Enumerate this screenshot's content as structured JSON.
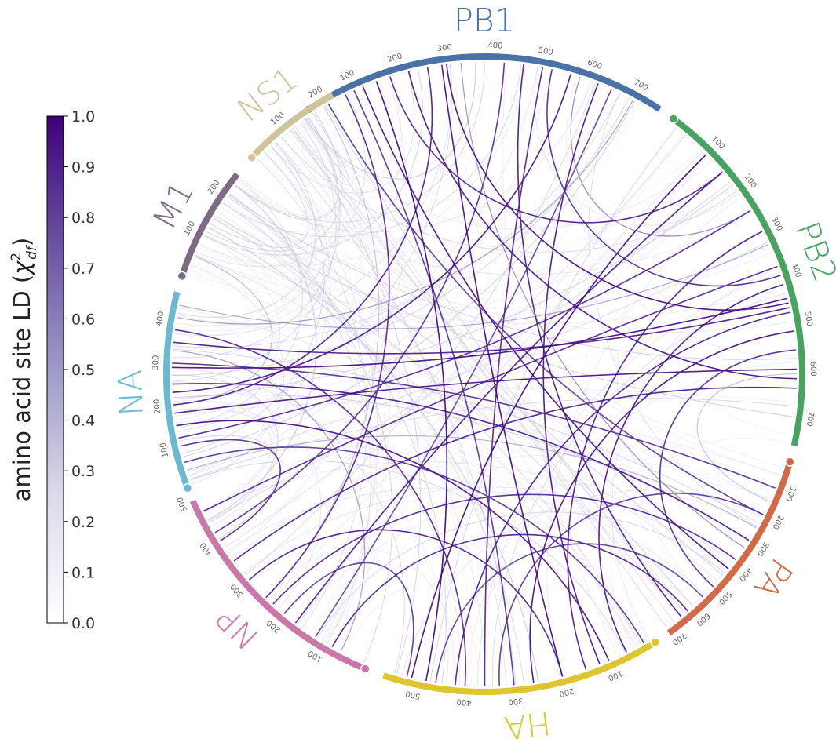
{
  "chart_data": {
    "type": "chord",
    "colorbar": {
      "label": "amino acid site LD (χ²df)",
      "label_main": "amino acid site LD (",
      "label_sym": "χ",
      "label_sup": "2",
      "label_sub": "df",
      "label_end": ")",
      "ticks": [
        "0.0",
        "0.1",
        "0.2",
        "0.3",
        "0.4",
        "0.5",
        "0.6",
        "0.7",
        "0.8",
        "0.9",
        "1.0"
      ],
      "range": [
        0.0,
        1.0
      ],
      "colors": [
        "#ffffff",
        "#dcdaeb",
        "#9e9ac8",
        "#6a51a3",
        "#3f007d"
      ]
    },
    "segments": [
      {
        "name": "PB1",
        "color": "#4a72a6",
        "length": 757,
        "ticks": [
          "100",
          "200",
          "300",
          "400",
          "500",
          "600",
          "700"
        ],
        "start_deg": -33.5,
        "end_deg": 33.5
      },
      {
        "name": "PB2",
        "color": "#48a360",
        "length": 759,
        "ticks": [
          "100",
          "200",
          "300",
          "400",
          "500",
          "600",
          "700"
        ],
        "start_deg": 36.5,
        "end_deg": 103
      },
      {
        "name": "PA",
        "color": "#d16a48",
        "length": 716,
        "ticks": [
          "100",
          "200",
          "300",
          "400",
          "500",
          "600",
          "700"
        ],
        "start_deg": 106,
        "end_deg": 144.5
      },
      {
        "name": "HA",
        "color": "#dfc52f",
        "length": 566,
        "ticks": [
          "100",
          "200",
          "300",
          "400",
          "500"
        ],
        "start_deg": 147.5,
        "end_deg": 198.5
      },
      {
        "name": "NP",
        "color": "#c978a7",
        "length": 498,
        "ticks": [
          "100",
          "200",
          "300",
          "400",
          "500"
        ],
        "start_deg": 202,
        "end_deg": 246.5
      },
      {
        "name": "NA",
        "color": "#6db8d1",
        "length": 469,
        "ticks": [
          "100",
          "200",
          "300",
          "400"
        ],
        "start_deg": 249,
        "end_deg": 285
      },
      {
        "name": "M1",
        "color": "#7d6b84",
        "length": 252,
        "ticks": [
          "100",
          "200"
        ],
        "start_deg": 288,
        "end_deg": 309
      },
      {
        "name": "NS1",
        "color": "#cfc499",
        "length": 230,
        "ticks": [
          "100",
          "200"
        ],
        "start_deg": 313,
        "end_deg": 331.5
      }
    ],
    "links": [
      {
        "a": "PB1",
        "pa": 150,
        "b": "HA",
        "pb": 480,
        "v": 0.98
      },
      {
        "a": "PB1",
        "pa": 120,
        "b": "PA",
        "pb": 420,
        "v": 0.95
      },
      {
        "a": "PB1",
        "pa": 290,
        "b": "HA",
        "pb": 200,
        "v": 0.97
      },
      {
        "a": "PB1",
        "pa": 300,
        "b": "PB2",
        "pb": 460,
        "v": 0.96
      },
      {
        "a": "PB1",
        "pa": 560,
        "b": "NA",
        "pb": 230,
        "v": 0.94
      },
      {
        "a": "PB1",
        "pa": 620,
        "b": "HA",
        "pb": 120,
        "v": 0.93
      },
      {
        "a": "PB1",
        "pa": 80,
        "b": "NP",
        "pb": 250,
        "v": 0.88
      },
      {
        "a": "PB1",
        "pa": 460,
        "b": "PA",
        "pb": 650,
        "v": 0.92
      },
      {
        "a": "PB1",
        "pa": 260,
        "b": "NA",
        "pb": 200,
        "v": 0.9
      },
      {
        "a": "PB1",
        "pa": 180,
        "b": "PB2",
        "pb": 150,
        "v": 0.91
      },
      {
        "a": "PB1",
        "pa": 420,
        "b": "NP",
        "pb": 420,
        "v": 0.86
      },
      {
        "a": "PB1",
        "pa": 700,
        "b": "NA",
        "pb": 410,
        "v": 0.6
      },
      {
        "a": "PB1",
        "pa": 500,
        "b": "HA",
        "pb": 360,
        "v": 0.89
      },
      {
        "a": "PB1",
        "pa": 40,
        "b": "PA",
        "pb": 200,
        "v": 0.82
      },
      {
        "a": "PB1",
        "pa": 220,
        "b": "PB2",
        "pb": 620,
        "v": 0.94
      },
      {
        "a": "PB1",
        "pa": 520,
        "b": "PB2",
        "pb": 400,
        "v": 0.87
      },
      {
        "a": "PB1",
        "pa": 650,
        "b": "NP",
        "pb": 120,
        "v": 0.78
      },
      {
        "a": "PB1",
        "pa": 360,
        "b": "NS1",
        "pb": 150,
        "v": 0.35
      },
      {
        "a": "PB1",
        "pa": 240,
        "b": "M1",
        "pb": 100,
        "v": 0.3
      },
      {
        "a": "PB1",
        "pa": 100,
        "b": "HA",
        "pb": 300,
        "v": 0.85
      },
      {
        "a": "PB2",
        "pa": 100,
        "b": "HA",
        "pb": 510,
        "v": 0.97
      },
      {
        "a": "PB2",
        "pa": 150,
        "b": "NP",
        "pb": 170,
        "v": 0.93
      },
      {
        "a": "PB2",
        "pa": 450,
        "b": "NA",
        "pb": 290,
        "v": 0.96
      },
      {
        "a": "PB2",
        "pa": 470,
        "b": "NA",
        "pb": 350,
        "v": 0.92
      },
      {
        "a": "PB2",
        "pa": 520,
        "b": "HA",
        "pb": 260,
        "v": 0.95
      },
      {
        "a": "PB2",
        "pa": 600,
        "b": "NA",
        "pb": 180,
        "v": 0.94
      },
      {
        "a": "PB2",
        "pa": 640,
        "b": "NP",
        "pb": 350,
        "v": 0.9
      },
      {
        "a": "PB2",
        "pa": 420,
        "b": "HA",
        "pb": 60,
        "v": 0.93
      },
      {
        "a": "PB2",
        "pa": 380,
        "b": "NP",
        "pb": 470,
        "v": 0.88
      },
      {
        "a": "PB2",
        "pa": 560,
        "b": "PA",
        "pb": 500,
        "v": 0.86
      },
      {
        "a": "PB2",
        "pa": 300,
        "b": "HA",
        "pb": 150,
        "v": 0.91
      },
      {
        "a": "PB2",
        "pa": 250,
        "b": "NA",
        "pb": 120,
        "v": 0.87
      },
      {
        "a": "PB2",
        "pa": 700,
        "b": "M1",
        "pb": 150,
        "v": 0.32
      },
      {
        "a": "PB2",
        "pa": 200,
        "b": "NS1",
        "pb": 80,
        "v": 0.28
      },
      {
        "a": "PB2",
        "pa": 610,
        "b": "PA",
        "pb": 150,
        "v": 0.4
      },
      {
        "a": "PB2",
        "pa": 480,
        "b": "HA",
        "pb": 420,
        "v": 0.9
      },
      {
        "a": "PA",
        "pa": 300,
        "b": "NA",
        "pb": 250,
        "v": 0.92
      },
      {
        "a": "PA",
        "pa": 380,
        "b": "NP",
        "pb": 230,
        "v": 0.88
      },
      {
        "a": "PA",
        "pa": 100,
        "b": "NA",
        "pb": 300,
        "v": 0.85
      },
      {
        "a": "PA",
        "pa": 550,
        "b": "HA",
        "pb": 460,
        "v": 0.8
      },
      {
        "a": "PA",
        "pa": 620,
        "b": "NP",
        "pb": 80,
        "v": 0.9
      },
      {
        "a": "PA",
        "pa": 200,
        "b": "HA",
        "pb": 330,
        "v": 0.83
      },
      {
        "a": "PA",
        "pa": 680,
        "b": "NS1",
        "pb": 120,
        "v": 0.25
      },
      {
        "a": "PA",
        "pa": 450,
        "b": "M1",
        "pb": 200,
        "v": 0.3
      },
      {
        "a": "HA",
        "pa": 100,
        "b": "NA",
        "pb": 150,
        "v": 0.95
      },
      {
        "a": "HA",
        "pa": 200,
        "b": "NP",
        "pb": 300,
        "v": 0.9
      },
      {
        "a": "HA",
        "pa": 400,
        "b": "NA",
        "pb": 380,
        "v": 0.88
      },
      {
        "a": "HA",
        "pa": 20,
        "b": "NA",
        "pb": 60,
        "v": 0.84
      },
      {
        "a": "HA",
        "pa": 520,
        "b": "NP",
        "pb": 200,
        "v": 0.82
      },
      {
        "a": "HA",
        "pa": 250,
        "b": "M1",
        "pb": 120,
        "v": 0.35
      },
      {
        "a": "NA",
        "pa": 100,
        "b": "NP",
        "pb": 400,
        "v": 0.86
      },
      {
        "a": "NA",
        "pa": 420,
        "b": "NS1",
        "pb": 60,
        "v": 0.3
      },
      {
        "a": "NA",
        "pa": 330,
        "b": "NP",
        "pb": 60,
        "v": 0.6
      },
      {
        "a": "NA",
        "pa": 200,
        "b": "M1",
        "pb": 50,
        "v": 0.45
      },
      {
        "a": "NP",
        "pa": 250,
        "b": "NS1",
        "pb": 200,
        "v": 0.4
      },
      {
        "a": "NP",
        "pa": 450,
        "b": "M1",
        "pb": 230,
        "v": 0.35
      },
      {
        "a": "PB1",
        "pa": 330,
        "b": "PA",
        "pb": 330,
        "v": 0.65
      },
      {
        "a": "PB1",
        "pa": 580,
        "b": "PB2",
        "pb": 250,
        "v": 0.7
      },
      {
        "a": "PB2",
        "pa": 330,
        "b": "NA",
        "pb": 440,
        "v": 0.55
      },
      {
        "a": "PA",
        "pa": 250,
        "b": "NA",
        "pb": 40,
        "v": 0.5
      }
    ]
  }
}
